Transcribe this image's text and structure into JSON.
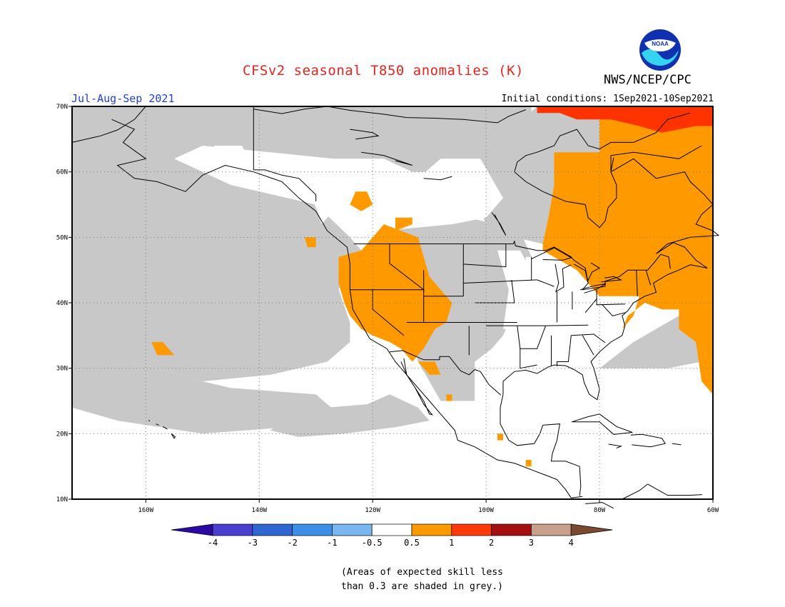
{
  "header": {
    "title": "CFSv2 seasonal T850 anomalies (K)",
    "agency": "NWS/NCEP/CPC",
    "season": "Jul-Aug-Sep 2021",
    "initial_conditions": "Initial conditions: 1Sep2021-10Sep2021",
    "logo_text": "NOAA"
  },
  "map": {
    "lon_range": [
      -173,
      -60
    ],
    "lat_range": [
      10,
      70
    ],
    "lon_ticks": [
      "160W",
      "140W",
      "120W",
      "100W",
      "80W",
      "60W"
    ],
    "lat_ticks": [
      "70N",
      "60N",
      "50N",
      "40N",
      "30N",
      "20N",
      "10N"
    ],
    "colors": {
      "no_skill_grey": "#c8c8c8",
      "near_normal": "#ffffff",
      "warm_0.5_1": "#ff9900",
      "warm_1_2": "#ff3300",
      "coast": "#000000"
    },
    "legend": {
      "skill_grey": "Grey shading: expected skill less than 0.3",
      "orange": "Anomaly 0.5 to 1 K",
      "red": "Anomaly 1 to 2 K"
    }
  },
  "colorbar": {
    "labels": [
      "-4",
      "-3",
      "-2",
      "-1",
      "-0.5",
      "0.5",
      "1",
      "2",
      "3",
      "4"
    ],
    "colors": [
      "#2a0aa0",
      "#4a3fd0",
      "#2f66d2",
      "#3c8ee6",
      "#7ab6f0",
      "#ffffff",
      "#ff9900",
      "#ff3a0a",
      "#a50f0f",
      "#c8a08c",
      "#7a4a30"
    ]
  },
  "note": {
    "line1": "(Areas of expected skill less",
    "line2": "than 0.3 are shaded in grey.)"
  }
}
